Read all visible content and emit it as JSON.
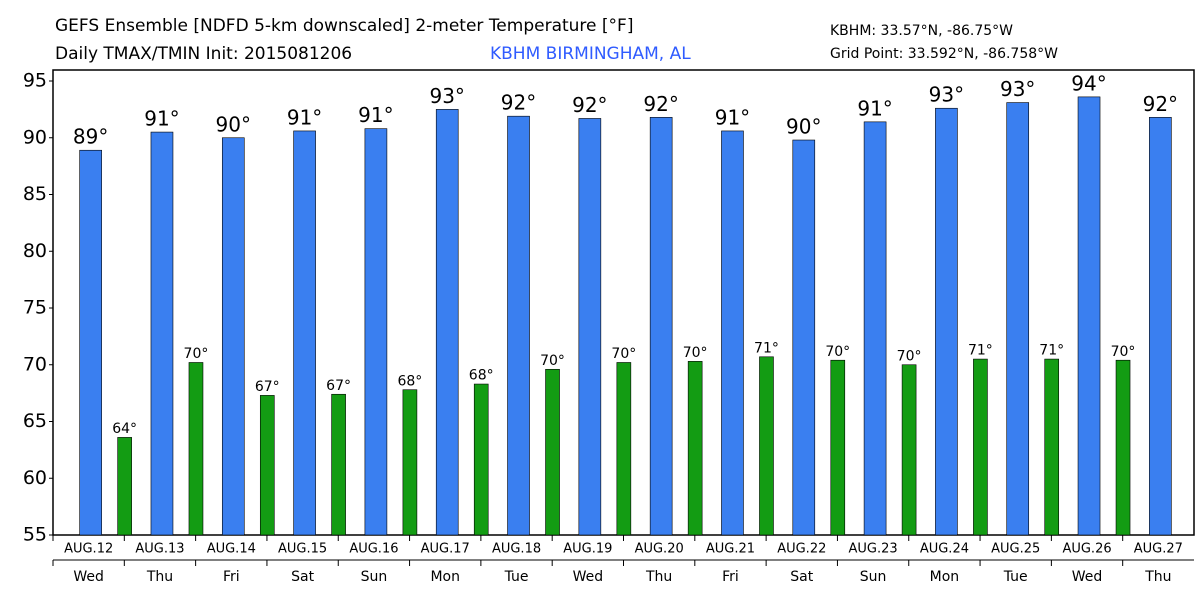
{
  "chart_data": {
    "type": "bar",
    "title": "GEFS Ensemble [NDFD 5-km downscaled] 2-meter Temperature [°F]",
    "subtitle": "Daily TMAX/TMIN Init: 2015081206",
    "location": "KBHM BIRMINGHAM, AL",
    "station": "KBHM: 33.57°N, -86.75°W",
    "grid_point": "Grid Point: 33.592°N, -86.758°W",
    "categories": [
      "AUG.12",
      "AUG.13",
      "AUG.14",
      "AUG.15",
      "AUG.16",
      "AUG.17",
      "AUG.18",
      "AUG.19",
      "AUG.20",
      "AUG.21",
      "AUG.22",
      "AUG.23",
      "AUG.24",
      "AUG.25",
      "AUG.26",
      "AUG.27"
    ],
    "weekdays": [
      "Wed",
      "Thu",
      "Fri",
      "Sat",
      "Sun",
      "Mon",
      "Tue",
      "Wed",
      "Thu",
      "Fri",
      "Sat",
      "Sun",
      "Mon",
      "Tue",
      "Wed",
      "Thu"
    ],
    "series": [
      {
        "color": "#3a7ff0",
        "values": [
          88.9,
          90.5,
          90.0,
          90.6,
          90.8,
          92.5,
          91.9,
          91.7,
          91.8,
          90.6,
          89.8,
          91.4,
          92.6,
          93.1,
          93.6,
          91.8
        ],
        "value_labels": [
          "89°",
          "91°",
          "90°",
          "91°",
          "91°",
          "93°",
          "92°",
          "92°",
          "92°",
          "91°",
          "90°",
          "91°",
          "93°",
          "93°",
          "94°",
          "92°"
        ]
      },
      {
        "color": "#139c13",
        "values": [
          63.6,
          70.2,
          67.3,
          67.4,
          67.8,
          68.3,
          69.6,
          70.2,
          70.3,
          70.7,
          70.4,
          70.0,
          70.5,
          70.5,
          70.4,
          null
        ],
        "value_labels": [
          "64°",
          "70°",
          "67°",
          "67°",
          "68°",
          "68°",
          "70°",
          "70°",
          "70°",
          "71°",
          "70°",
          "70°",
          "71°",
          "71°",
          "70°",
          null
        ]
      }
    ],
    "ylim": [
      55,
      95
    ],
    "yticks": [
      55,
      60,
      65,
      70,
      75,
      80,
      85,
      90,
      95
    ],
    "grid": false
  }
}
